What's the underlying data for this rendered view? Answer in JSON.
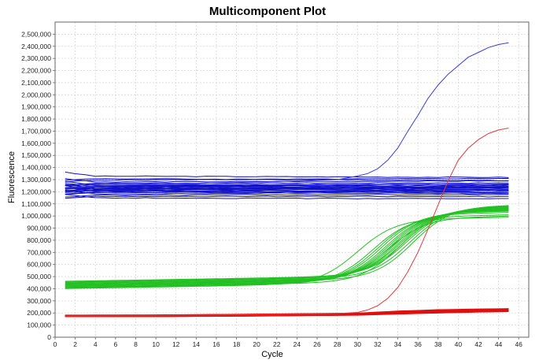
{
  "chart_data": {
    "type": "line",
    "title": "Multicomponent Plot",
    "xlabel": "Cycle",
    "ylabel": "Fluorescence",
    "xlim": [
      0,
      47
    ],
    "ylim": [
      0,
      2600000
    ],
    "x_ticks": [
      0,
      2,
      4,
      6,
      8,
      10,
      12,
      14,
      16,
      18,
      20,
      22,
      24,
      26,
      28,
      30,
      32,
      34,
      36,
      38,
      40,
      42,
      44,
      46
    ],
    "y_ticks": [
      0,
      100000,
      200000,
      300000,
      400000,
      500000,
      600000,
      700000,
      800000,
      900000,
      1000000,
      1100000,
      1200000,
      1300000,
      1400000,
      1500000,
      1600000,
      1700000,
      1800000,
      1900000,
      2000000,
      2100000,
      2200000,
      2300000,
      2400000,
      2500000
    ],
    "y_tick_labels": [
      "0",
      "100,000",
      "200,000",
      "300,000",
      "400,000",
      "500,000",
      "600,000",
      "700,000",
      "800,000",
      "900,000",
      "1,000,000",
      "1,100,000",
      "1,200,000",
      "1,300,000",
      "1,400,000",
      "1,500,000",
      "1,600,000",
      "1,700,000",
      "1,800,000",
      "1,900,000",
      "2,000,000",
      "2,100,000",
      "2,200,000",
      "2,300,000",
      "2,400,000",
      "2,500,000"
    ],
    "grid": true,
    "legend": "none",
    "colors": {
      "blue": "#1010c8",
      "blue_amp": "#3a3ae0",
      "green": "#22c022",
      "red": "#e01010",
      "red_amp": "#e03a3a"
    },
    "groups": {
      "blue_flat": [
        1330000,
        1310000,
        1295000,
        1280000,
        1270000,
        1262000,
        1255000,
        1250000,
        1246000,
        1242000,
        1238000,
        1234000,
        1230000,
        1226000,
        1222000,
        1218000,
        1214000,
        1210000,
        1205000,
        1200000,
        1192000,
        1182000,
        1172000,
        1162000,
        1150000
      ],
      "blue_amplifying": {
        "x": [
          1,
          3,
          5,
          10,
          20,
          28,
          30,
          31,
          32,
          33,
          34,
          35,
          36,
          37,
          38,
          39,
          40,
          41,
          42,
          43,
          44,
          45
        ],
        "y": [
          1230000,
          1240000,
          1250000,
          1260000,
          1280000,
          1300000,
          1330000,
          1350000,
          1390000,
          1460000,
          1560000,
          1700000,
          1830000,
          1970000,
          2080000,
          2170000,
          2240000,
          2310000,
          2350000,
          2390000,
          2415000,
          2430000
        ]
      },
      "green_baselines": [
        400000,
        405000,
        410000,
        415000,
        420000,
        425000,
        430000,
        435000,
        440000,
        450000,
        455000,
        460000,
        445000,
        432000,
        418000,
        408000
      ],
      "green_plateaus": [
        990000,
        1010000,
        1030000,
        1040000,
        1045000,
        1050000,
        1055000,
        1060000,
        1065000,
        1070000,
        1075000,
        1080000,
        1085000,
        1090000,
        1000000,
        1062000
      ],
      "green_midpoints": [
        30.0,
        31.5,
        32.0,
        32.4,
        32.8,
        33.1,
        33.4,
        33.7,
        34.0,
        34.3,
        34.6,
        34.9,
        35.2,
        35.5,
        33.0,
        34.2
      ],
      "red_flat": {
        "x": [
          1,
          10,
          20,
          30,
          34,
          38,
          42,
          45
        ],
        "y_low": [
          170000,
          170000,
          175000,
          182000,
          192000,
          200000,
          208000,
          212000
        ],
        "y_high": [
          182000,
          183000,
          190000,
          198000,
          215000,
          226000,
          232000,
          235000
        ]
      },
      "red_amplifying": {
        "x": [
          1,
          10,
          20,
          28,
          30,
          31,
          32,
          33,
          34,
          35,
          36,
          37,
          38,
          39,
          40,
          41,
          42,
          43,
          44,
          45
        ],
        "y": [
          175000,
          178000,
          185000,
          195000,
          205000,
          225000,
          260000,
          320000,
          410000,
          540000,
          700000,
          890000,
          1090000,
          1290000,
          1460000,
          1560000,
          1630000,
          1680000,
          1710000,
          1725000
        ]
      }
    }
  }
}
